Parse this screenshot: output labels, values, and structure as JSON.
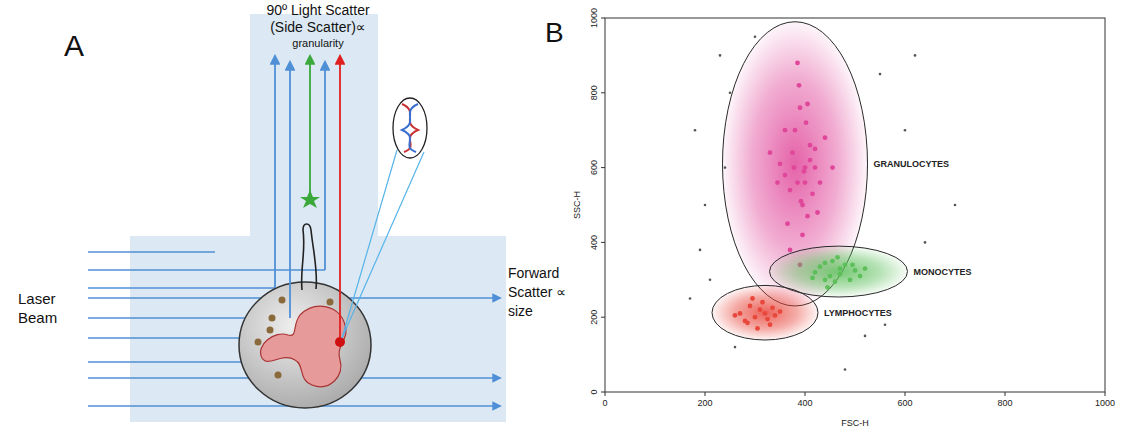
{
  "diagram": {
    "panel": "A",
    "side_scatter_label": [
      "90º Light Scatter",
      "(Side Scatter)∝",
      "granularity"
    ],
    "laser_label": [
      "Laser",
      "Beam"
    ],
    "forward_scatter_label": [
      "Forward",
      "Scatter ∝",
      "size"
    ]
  },
  "chart_data": {
    "type": "scatter",
    "panel": "B",
    "x_label": "FSC-H",
    "y_label": "SSC-H",
    "xlim": [
      0,
      1000
    ],
    "ylim": [
      0,
      1000
    ],
    "xticks": [
      0,
      200,
      400,
      600,
      800,
      1000
    ],
    "yticks": [
      0,
      200,
      400,
      600,
      800,
      1000
    ],
    "marker": "dot",
    "series": [
      {
        "name": "GRANULOCYTES",
        "color": "#e0479a",
        "gate": {
          "cx": 380,
          "cy": 610,
          "rx": 145,
          "ry": 380
        },
        "x": [
          385,
          400,
          370,
          410,
          395,
          360,
          420,
          380,
          405,
          390,
          350,
          430,
          375,
          415,
          398,
          365,
          440,
          388,
          402,
          345,
          425,
          392,
          378,
          410,
          360,
          395,
          385,
          420,
          370,
          400,
          330,
          455,
          390,
          405
        ],
        "values": [
          560,
          600,
          540,
          620,
          500,
          580,
          650,
          700,
          470,
          760,
          610,
          560,
          640,
          530,
          590,
          450,
          680,
          820,
          720,
          560,
          480,
          510,
          600,
          660,
          700,
          420,
          880,
          600,
          380,
          560,
          640,
          600,
          340,
          770
        ]
      },
      {
        "name": "MONOCYTES",
        "color": "#5cbf5a",
        "gate": {
          "cx": 467,
          "cy": 322,
          "rx": 138,
          "ry": 68
        },
        "x": [
          420,
          450,
          470,
          440,
          500,
          480,
          430,
          460,
          510,
          455,
          490,
          440,
          470,
          520,
          415,
          465,
          495,
          445
        ],
        "values": [
          320,
          310,
          330,
          300,
          325,
          340,
          335,
          295,
          310,
          350,
          300,
          345,
          315,
          330,
          305,
          360,
          340,
          280
        ]
      },
      {
        "name": "LYMPHOCYTES",
        "color": "#e8473c",
        "gate": {
          "cx": 320,
          "cy": 212,
          "rx": 106,
          "ry": 73
        },
        "x": [
          300,
          320,
          280,
          310,
          340,
          290,
          330,
          270,
          315,
          305,
          350,
          285,
          325,
          295,
          260,
          335
        ],
        "values": [
          200,
          210,
          190,
          220,
          205,
          230,
          180,
          210,
          240,
          170,
          215,
          185,
          195,
          250,
          205,
          225
        ]
      },
      {
        "color": "#555555",
        "x": [
          180,
          200,
          230,
          260,
          550,
          600,
          640,
          250,
          520,
          210,
          300,
          700,
          560,
          190,
          480,
          240,
          620,
          170
        ],
        "values": [
          700,
          500,
          900,
          120,
          850,
          700,
          400,
          800,
          150,
          300,
          950,
          500,
          180,
          380,
          60,
          600,
          900,
          250
        ]
      }
    ]
  }
}
